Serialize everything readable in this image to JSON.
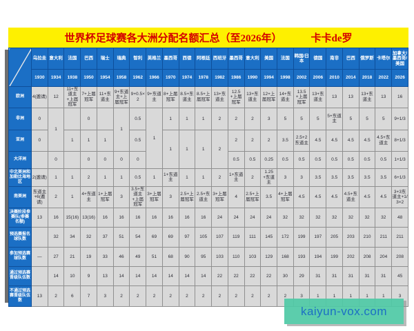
{
  "title": {
    "text": "世界杯足球赛各大洲分配名额汇总（至2026年）",
    "author": "卡卡de罗"
  },
  "watermark": "kaiyun-vox.com",
  "colors": {
    "title_bg": "#fef000",
    "title_text": "#d40000",
    "header_bg": "#1b6fc5",
    "cell_bg": "#d9d9d9",
    "watermark_bg": "#50c9a6",
    "watermark_text": "#1c6fc4"
  },
  "chart_data": {
    "type": "table",
    "title": "世界杯足球赛各大洲分配名额汇总（至2026年）",
    "hosts": [
      "乌拉圭",
      "意大利",
      "法国",
      "巴西",
      "瑞士",
      "瑞典",
      "智利",
      "英格兰",
      "墨西哥",
      "西德",
      "阿根廷",
      "西班牙",
      "墨西哥",
      "意大利",
      "美国",
      "法国",
      "韩国/日本",
      "德国",
      "南非",
      "巴西",
      "俄罗斯",
      "卡塔尔",
      "加拿大/墨西哥/美国"
    ],
    "years": [
      "1930",
      "1934",
      "1938",
      "1950",
      "1954",
      "1958",
      "1962",
      "1966",
      "1970",
      "1974",
      "1978",
      "1982",
      "1986",
      "1990",
      "1994",
      "1998",
      "2002",
      "2006",
      "2010",
      "2014",
      "2018",
      "2022",
      "2026"
    ],
    "rows": [
      {
        "label": "欧洲",
        "cells": [
          "4(邀请)",
          "12",
          "11+东道主+上届冠军",
          "7+上届冠军",
          "11+东道主",
          "9+东道主+上届冠军",
          "9+0.5×2",
          "9+东道主",
          "8+上届冠军",
          "8.5+东道主",
          "8.5+上届冠军",
          "13+东道主",
          "12.5+上届冠军",
          "13+东道主",
          "12+上届冠军",
          "14+东道主",
          "13.5+上届冠军",
          "13+东道主",
          "13",
          "13",
          "13+东道主",
          "13",
          "16"
        ]
      },
      {
        "label": "非洲",
        "cells": [
          "0",
          {
            "t": "1",
            "rs": 2
          },
          "",
          "0",
          "",
          {
            "t": "1",
            "rs": 2
          },
          "0.5",
          {
            "t": "1",
            "rs": 3
          },
          "1",
          "1",
          "1",
          "2",
          "2",
          "2",
          "3",
          "5",
          "5",
          "5",
          "5+东道主",
          "5",
          "5",
          "5",
          "9+1/3"
        ]
      },
      {
        "label": "亚洲",
        "cells": [
          "0",
          null,
          "1",
          "1",
          "1",
          null,
          "0.5",
          null,
          {
            "t": "1",
            "rs": 2
          },
          {
            "t": "1",
            "rs": 2
          },
          {
            "t": "1",
            "rs": 2
          },
          {
            "t": "2",
            "rs": 2
          },
          "2",
          "2",
          "2",
          "3.5",
          "2.5+2东道主",
          "4.5",
          "4.5",
          "4.5",
          "4.5",
          "4.5+东道主",
          "8+1/3"
        ]
      },
      {
        "label": "大洋洲",
        "cells": [
          "",
          "0",
          "",
          "0",
          "0",
          "0",
          "0",
          null,
          null,
          null,
          null,
          null,
          "0.5",
          "0.5",
          "0.25",
          "0.5",
          "0.5",
          "0.5",
          "0.5",
          "0.5",
          "0.5",
          "0.5",
          "1+1/3"
        ]
      },
      {
        "label": "中北美洲和加勒比海地区",
        "cells": [
          "2(邀请)",
          "1",
          "1",
          "2",
          "1",
          "1",
          "0.5",
          "1",
          "1+东道主",
          "1",
          "1",
          "2",
          "1+东道主",
          "2",
          "1.25+东道主",
          "3",
          "3",
          "3.5",
          "3.5",
          "3.5",
          "3.5",
          "3.5",
          "6+1/3"
        ]
      },
      {
        "label": "南美洲",
        "cells": [
          "东道主+6(邀请)",
          "2",
          "1",
          "4+东道主",
          "1+上届冠军",
          "3",
          "3.5+东道主+上届冠军",
          "3+上届冠军",
          "3",
          "2.5+上届冠军",
          "2.5+东道主",
          "3+上届冠军",
          "4",
          "2.5+上届冠军",
          "3.5",
          "4+上届冠军",
          "4.5",
          "4.5",
          "4.5",
          "4.5+东道主",
          "4.5",
          "4.5",
          "3+3东道主+1/3×2"
        ]
      },
      {
        "label": "决赛阶段参赛队(参赛名额)",
        "cells": [
          "13",
          "16",
          "15(16)",
          "13(16)",
          "16",
          "16",
          "16",
          "16",
          "16",
          "16",
          "16",
          "24",
          "24",
          "24",
          "24",
          "32",
          "32",
          "32",
          "32",
          "32",
          "32",
          "32",
          "48"
        ]
      },
      {
        "label": "预选赛报名球队数",
        "cells": [
          "",
          "32",
          "34",
          "32",
          "37",
          "51",
          "54",
          "69",
          "69",
          "97",
          "105",
          "107",
          "119",
          "111",
          "145",
          "172",
          "199",
          "197",
          "205",
          "203",
          "210",
          "211",
          "211"
        ]
      },
      {
        "label": "参加预选赛球队数",
        "cells": [
          "—",
          "27",
          "21",
          "19",
          "33",
          "46",
          "49",
          "51",
          "68",
          "90",
          "95",
          "103",
          "110",
          "103",
          "129",
          "168",
          "193",
          "194",
          "199",
          "202",
          "208",
          "204",
          "208"
        ]
      },
      {
        "label": "通过预选赛晋级队伍数",
        "cells": [
          "",
          "14",
          "10",
          "9",
          "13",
          "14",
          "14",
          "14",
          "14",
          "14",
          "14",
          "22",
          "22",
          "22",
          "22",
          "30",
          "29",
          "31",
          "31",
          "31",
          "31",
          "31",
          "45"
        ]
      },
      {
        "label": "不通过预选赛晋级队伍数",
        "cells": [
          "13",
          "2",
          "6",
          "7",
          "3",
          "2",
          "2",
          "2",
          "2",
          "2",
          "2",
          "2",
          "2",
          "2",
          "2",
          "2",
          "3",
          "1",
          "1",
          "1",
          "1",
          "1",
          "3"
        ]
      }
    ]
  }
}
